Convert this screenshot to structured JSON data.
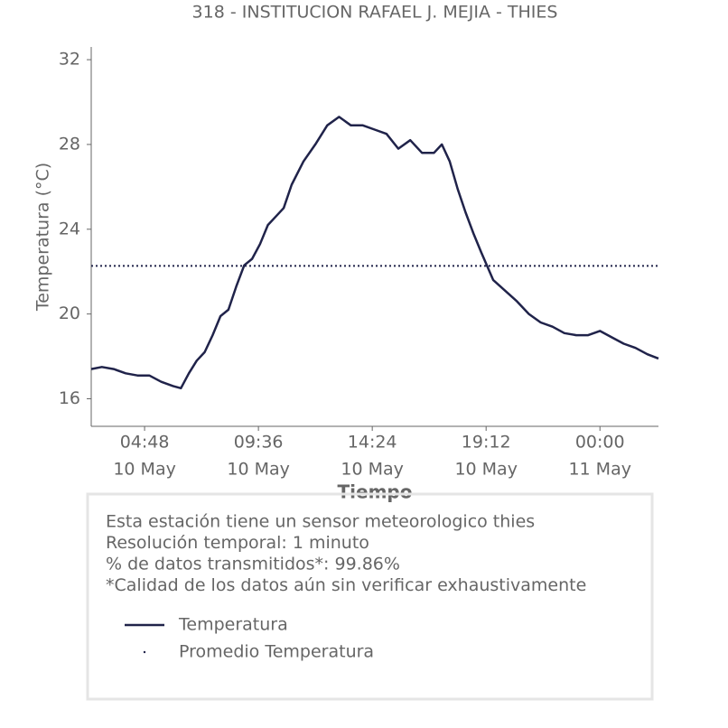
{
  "chart_data": {
    "type": "line",
    "title": "318 - INSTITUCION RAFAEL J. MEJIA - THIES",
    "xlabel": "Tiempo",
    "ylabel": "Temperatura (°C)",
    "x": [
      "10 May 02:33",
      "10 May 03:00",
      "10 May 03:30",
      "10 May 04:00",
      "10 May 04:30",
      "10 May 05:00",
      "10 May 05:30",
      "10 May 06:00",
      "10 May 06:20",
      "10 May 06:40",
      "10 May 07:00",
      "10 May 07:20",
      "10 May 07:40",
      "10 May 08:00",
      "10 May 08:20",
      "10 May 08:40",
      "10 May 09:00",
      "10 May 09:20",
      "10 May 09:40",
      "10 May 10:00",
      "10 May 10:20",
      "10 May 10:40",
      "10 May 11:00",
      "10 May 11:30",
      "10 May 12:00",
      "10 May 12:30",
      "10 May 13:00",
      "10 May 13:30",
      "10 May 14:00",
      "10 May 14:30",
      "10 May 15:00",
      "10 May 15:30",
      "10 May 16:00",
      "10 May 16:30",
      "10 May 17:00",
      "10 May 17:20",
      "10 May 17:40",
      "10 May 18:00",
      "10 May 18:20",
      "10 May 18:40",
      "10 May 19:00",
      "10 May 19:30",
      "10 May 20:00",
      "10 May 20:30",
      "10 May 21:00",
      "10 May 21:30",
      "10 May 22:00",
      "10 May 22:30",
      "10 May 23:00",
      "10 May 23:30",
      "11 May 00:00",
      "11 May 00:30",
      "11 May 01:00",
      "11 May 01:30",
      "11 May 02:00",
      "11 May 02:28"
    ],
    "series": [
      {
        "name": "Temperatura",
        "color": "#20234a",
        "values": [
          17.4,
          17.5,
          17.4,
          17.2,
          17.1,
          17.1,
          16.8,
          16.6,
          16.5,
          17.2,
          17.8,
          18.2,
          19.0,
          19.9,
          20.2,
          21.3,
          22.3,
          22.6,
          23.3,
          24.2,
          24.6,
          25.0,
          26.1,
          27.2,
          28.0,
          28.9,
          29.3,
          28.9,
          28.9,
          28.7,
          28.5,
          27.8,
          28.2,
          27.6,
          27.6,
          28.0,
          27.2,
          25.9,
          24.8,
          23.8,
          22.9,
          21.6,
          21.1,
          20.6,
          20.0,
          19.6,
          19.4,
          19.1,
          19.0,
          19.0,
          19.2,
          18.9,
          18.6,
          18.4,
          18.1,
          17.9
        ]
      }
    ],
    "mean": {
      "name": "Promedio Temperatura",
      "value": 22.27,
      "color": "#20234a"
    },
    "xlim": [
      "10 May 02:33",
      "11 May 02:28"
    ],
    "xticks": [
      {
        "value": "10 May 04:48",
        "label": [
          "04:48",
          "10 May"
        ]
      },
      {
        "value": "10 May 09:36",
        "label": [
          "09:36",
          "10 May"
        ]
      },
      {
        "value": "10 May 14:24",
        "label": [
          "14:24",
          "10 May"
        ]
      },
      {
        "value": "10 May 19:12",
        "label": [
          "19:12",
          "10 May"
        ]
      },
      {
        "value": "11 May 00:00",
        "label": [
          "00:00",
          "11 May"
        ]
      }
    ],
    "ylim": [
      14.7,
      32.6
    ],
    "yticks": [
      16,
      20,
      24,
      28,
      32
    ],
    "grid": false
  },
  "info": [
    "Esta estación tiene un sensor meteorologico thies",
    "Resolución temporal: 1 minuto",
    "% de datos transmitidos*: 99.86%",
    "*Calidad de los datos aún sin verificar exhaustivamente"
  ]
}
